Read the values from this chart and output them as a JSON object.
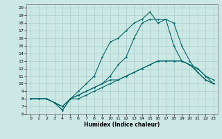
{
  "xlabel": "Humidex (Indice chaleur)",
  "bg_color": "#cce8e5",
  "grid_color": "#aaccca",
  "line_color": "#006666",
  "xlim": [
    -0.5,
    23.5
  ],
  "ylim": [
    6,
    20.5
  ],
  "xticks": [
    0,
    1,
    2,
    3,
    4,
    5,
    6,
    7,
    8,
    9,
    10,
    11,
    12,
    13,
    14,
    15,
    16,
    17,
    18,
    19,
    20,
    21,
    22,
    23
  ],
  "yticks": [
    6,
    7,
    8,
    9,
    10,
    11,
    12,
    13,
    14,
    15,
    16,
    17,
    18,
    19,
    20
  ],
  "series": [
    [
      8,
      8,
      8,
      7.5,
      6.5,
      8,
      8.5,
      9,
      9.5,
      10,
      10.5,
      10.5,
      11,
      11.5,
      12,
      12.5,
      13,
      13,
      13,
      13,
      12.5,
      12,
      11,
      10.5
    ],
    [
      8,
      8,
      8,
      7.5,
      7,
      8,
      9,
      10,
      11,
      13.5,
      15.5,
      16,
      17,
      18,
      18.5,
      19.5,
      18,
      18.5,
      15,
      13,
      12.5,
      11.5,
      10.5,
      10
    ],
    [
      8,
      8,
      8,
      7.5,
      7,
      8,
      8.5,
      9,
      9.5,
      10,
      11,
      12.5,
      13.5,
      16,
      18,
      18.5,
      18.5,
      18.5,
      18,
      15,
      13,
      11.5,
      10.5,
      10
    ],
    [
      8,
      8,
      8,
      7.5,
      6.5,
      8,
      8,
      8.5,
      9,
      9.5,
      10,
      10.5,
      11,
      11.5,
      12,
      12.5,
      13,
      13,
      13,
      13,
      12.5,
      12,
      11,
      10
    ]
  ]
}
